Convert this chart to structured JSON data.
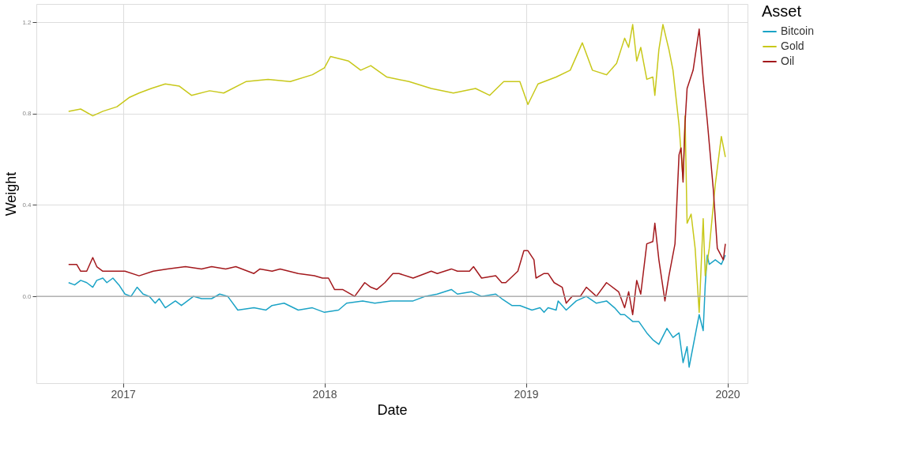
{
  "chart_data": {
    "type": "line",
    "xlabel": "Date",
    "ylabel": "Weight",
    "legend_title": "Asset",
    "xlim": [
      2016.57,
      2020.1
    ],
    "xticks": [
      2017,
      2018,
      2019,
      2020
    ],
    "ylim": [
      -0.38,
      1.28
    ],
    "yticks": [
      {
        "value": 0,
        "label": "0.0"
      },
      0.4,
      0.8,
      1.2
    ],
    "grid": true,
    "legend": "right",
    "line_style": "solid",
    "ref_lines": [
      {
        "axis": "y",
        "value": 0,
        "color": "#a6a6a6"
      }
    ],
    "series": [
      {
        "name": "Bitcoin",
        "color": "#1ba3c6",
        "x": [
          2016.73,
          2016.76,
          2016.79,
          2016.82,
          2016.85,
          2016.87,
          2016.9,
          2016.92,
          2016.95,
          2016.98,
          2017.01,
          2017.04,
          2017.07,
          2017.1,
          2017.13,
          2017.16,
          2017.18,
          2017.21,
          2017.26,
          2017.29,
          2017.32,
          2017.35,
          2017.39,
          2017.44,
          2017.48,
          2017.52,
          2017.57,
          2017.65,
          2017.71,
          2017.74,
          2017.8,
          2017.87,
          2017.94,
          2018.0,
          2018.07,
          2018.11,
          2018.19,
          2018.25,
          2018.33,
          2018.37,
          2018.44,
          2018.5,
          2018.56,
          2018.63,
          2018.66,
          2018.73,
          2018.78,
          2018.85,
          2018.88,
          2018.93,
          2018.97,
          2019.03,
          2019.07,
          2019.09,
          2019.11,
          2019.15,
          2019.16,
          2019.2,
          2019.25,
          2019.3,
          2019.35,
          2019.4,
          2019.44,
          2019.47,
          2019.49,
          2019.53,
          2019.56,
          2019.6,
          2019.63,
          2019.66,
          2019.7,
          2019.73,
          2019.76,
          2019.78,
          2019.8,
          2019.81,
          2019.86,
          2019.88,
          2019.89,
          2019.9,
          2019.91,
          2019.94,
          2019.97,
          2019.99
        ],
        "values": [
          0.06,
          0.05,
          0.07,
          0.06,
          0.04,
          0.07,
          0.08,
          0.06,
          0.08,
          0.05,
          0.01,
          0.0,
          0.04,
          0.01,
          0.0,
          -0.03,
          -0.01,
          -0.05,
          -0.02,
          -0.04,
          -0.02,
          0.0,
          -0.01,
          -0.01,
          0.01,
          0.0,
          -0.06,
          -0.05,
          -0.06,
          -0.04,
          -0.03,
          -0.06,
          -0.05,
          -0.07,
          -0.06,
          -0.03,
          -0.02,
          -0.03,
          -0.02,
          -0.02,
          -0.02,
          0.0,
          0.01,
          0.03,
          0.01,
          0.02,
          0.0,
          0.01,
          -0.01,
          -0.04,
          -0.04,
          -0.06,
          -0.05,
          -0.07,
          -0.05,
          -0.06,
          -0.02,
          -0.06,
          -0.02,
          0.0,
          -0.03,
          -0.02,
          -0.05,
          -0.08,
          -0.08,
          -0.11,
          -0.11,
          -0.16,
          -0.19,
          -0.21,
          -0.14,
          -0.18,
          -0.16,
          -0.29,
          -0.22,
          -0.31,
          -0.08,
          -0.15,
          0.05,
          0.18,
          0.14,
          0.16,
          0.14,
          0.18
        ]
      },
      {
        "name": "Gold",
        "color": "#c8c81a",
        "x": [
          2016.73,
          2016.79,
          2016.85,
          2016.9,
          2016.97,
          2017.03,
          2017.08,
          2017.14,
          2017.21,
          2017.28,
          2017.34,
          2017.43,
          2017.5,
          2017.61,
          2017.72,
          2017.83,
          2017.94,
          2018.0,
          2018.03,
          2018.12,
          2018.18,
          2018.23,
          2018.31,
          2018.42,
          2018.53,
          2018.64,
          2018.75,
          2018.82,
          2018.89,
          2018.97,
          2019.01,
          2019.06,
          2019.15,
          2019.22,
          2019.28,
          2019.33,
          2019.4,
          2019.45,
          2019.49,
          2019.51,
          2019.53,
          2019.55,
          2019.57,
          2019.6,
          2019.63,
          2019.64,
          2019.66,
          2019.68,
          2019.71,
          2019.73,
          2019.76,
          2019.78,
          2019.79,
          2019.8,
          2019.82,
          2019.84,
          2019.86,
          2019.88,
          2019.89,
          2019.91,
          2019.94,
          2019.97,
          2019.99
        ],
        "values": [
          0.81,
          0.82,
          0.79,
          0.81,
          0.83,
          0.87,
          0.89,
          0.91,
          0.93,
          0.92,
          0.88,
          0.9,
          0.89,
          0.94,
          0.95,
          0.94,
          0.97,
          1.0,
          1.05,
          1.03,
          0.99,
          1.01,
          0.96,
          0.94,
          0.91,
          0.89,
          0.91,
          0.88,
          0.94,
          0.94,
          0.84,
          0.93,
          0.96,
          0.99,
          1.11,
          0.99,
          0.97,
          1.02,
          1.13,
          1.09,
          1.19,
          1.03,
          1.09,
          0.95,
          0.96,
          0.88,
          1.08,
          1.19,
          1.08,
          0.99,
          0.75,
          0.51,
          0.79,
          0.32,
          0.36,
          0.21,
          -0.07,
          0.34,
          0.09,
          0.21,
          0.49,
          0.7,
          0.61
        ]
      },
      {
        "name": "Oil",
        "color": "#a3191d",
        "x": [
          2016.73,
          2016.77,
          2016.79,
          2016.82,
          2016.85,
          2016.87,
          2016.9,
          2016.94,
          2017.01,
          2017.08,
          2017.15,
          2017.22,
          2017.31,
          2017.39,
          2017.44,
          2017.51,
          2017.56,
          2017.65,
          2017.68,
          2017.74,
          2017.78,
          2017.87,
          2017.95,
          2017.99,
          2018.02,
          2018.05,
          2018.09,
          2018.15,
          2018.2,
          2018.23,
          2018.26,
          2018.3,
          2018.34,
          2018.37,
          2018.44,
          2018.5,
          2018.53,
          2018.56,
          2018.63,
          2018.66,
          2018.72,
          2018.74,
          2018.78,
          2018.85,
          2018.88,
          2018.9,
          2018.96,
          2018.99,
          2019.01,
          2019.04,
          2019.05,
          2019.09,
          2019.11,
          2019.14,
          2019.18,
          2019.2,
          2019.23,
          2019.27,
          2019.3,
          2019.35,
          2019.4,
          2019.46,
          2019.49,
          2019.51,
          2019.53,
          2019.55,
          2019.57,
          2019.6,
          2019.63,
          2019.64,
          2019.66,
          2019.69,
          2019.71,
          2019.74,
          2019.76,
          2019.77,
          2019.78,
          2019.79,
          2019.8,
          2019.83,
          2019.86,
          2019.88,
          2019.9,
          2019.93,
          2019.95,
          2019.98,
          2019.99
        ],
        "values": [
          0.14,
          0.14,
          0.11,
          0.11,
          0.17,
          0.13,
          0.11,
          0.11,
          0.11,
          0.09,
          0.11,
          0.12,
          0.13,
          0.12,
          0.13,
          0.12,
          0.13,
          0.1,
          0.12,
          0.11,
          0.12,
          0.1,
          0.09,
          0.08,
          0.08,
          0.03,
          0.03,
          0.0,
          0.06,
          0.04,
          0.03,
          0.06,
          0.1,
          0.1,
          0.08,
          0.1,
          0.11,
          0.1,
          0.12,
          0.11,
          0.11,
          0.13,
          0.08,
          0.09,
          0.06,
          0.06,
          0.11,
          0.2,
          0.2,
          0.16,
          0.08,
          0.1,
          0.1,
          0.06,
          0.04,
          -0.03,
          0.0,
          0.0,
          0.04,
          0.0,
          0.06,
          0.02,
          -0.05,
          0.02,
          -0.08,
          0.07,
          0.01,
          0.23,
          0.24,
          0.32,
          0.16,
          -0.02,
          0.09,
          0.23,
          0.62,
          0.65,
          0.5,
          0.76,
          0.91,
          0.99,
          1.17,
          0.95,
          0.77,
          0.47,
          0.21,
          0.16,
          0.23
        ]
      }
    ]
  }
}
